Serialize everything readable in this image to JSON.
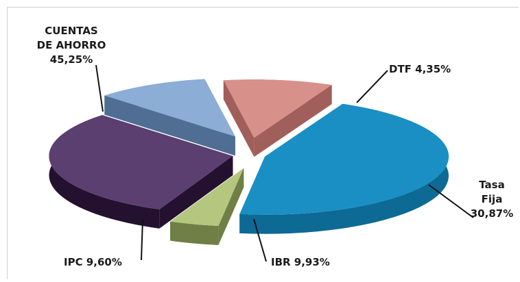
{
  "chart_data": {
    "type": "pie",
    "title": "",
    "slices": [
      {
        "label_lines": [
          "CUENTAS",
          "DE AHORRO",
          "45,25%"
        ],
        "value": 45.25,
        "color": "#1a8fc3",
        "side": "#0d6a95"
      },
      {
        "label_lines": [
          "DTF 4,35%"
        ],
        "value": 4.35,
        "color": "#b5c77f",
        "side": "#6f7f45"
      },
      {
        "label_lines": [
          "Tasa",
          "Fija",
          "30,87%"
        ],
        "value": 30.87,
        "color": "#5a3f70",
        "side": "#24112f"
      },
      {
        "label_lines": [
          "IBR 9,93%"
        ],
        "value": 9.93,
        "color": "#8cadd6",
        "side": "#506d93"
      },
      {
        "label_lines": [
          "IPC 9,60%"
        ],
        "value": 9.6,
        "color": "#d8908b",
        "side": "#a05f5a"
      }
    ]
  }
}
